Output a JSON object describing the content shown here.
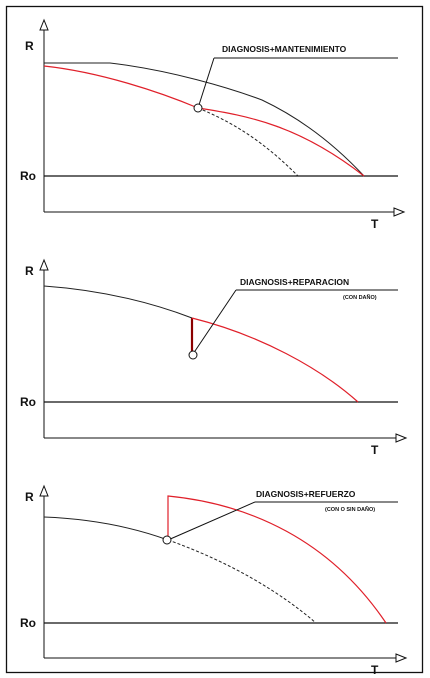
{
  "colors": {
    "black_curve": "#222222",
    "red_curve": "#e0202a",
    "dark_red_jump": "#8b0000",
    "frame": "#111111"
  },
  "panels": [
    {
      "y_axis_label": "R",
      "baseline_label": "Ro",
      "x_axis_label": "T",
      "annotation": "DIAGNOSIS+MANTENIMIENTO",
      "annotation_sub": ""
    },
    {
      "y_axis_label": "R",
      "baseline_label": "Ro",
      "x_axis_label": "T",
      "annotation": "DIAGNOSIS+REPARACION",
      "annotation_sub": "(CON DAÑO)"
    },
    {
      "y_axis_label": "R",
      "baseline_label": "Ro",
      "x_axis_label": "T",
      "annotation": "DIAGNOSIS+REFUERZO",
      "annotation_sub": "(CON O SIN DAÑO)"
    }
  ]
}
